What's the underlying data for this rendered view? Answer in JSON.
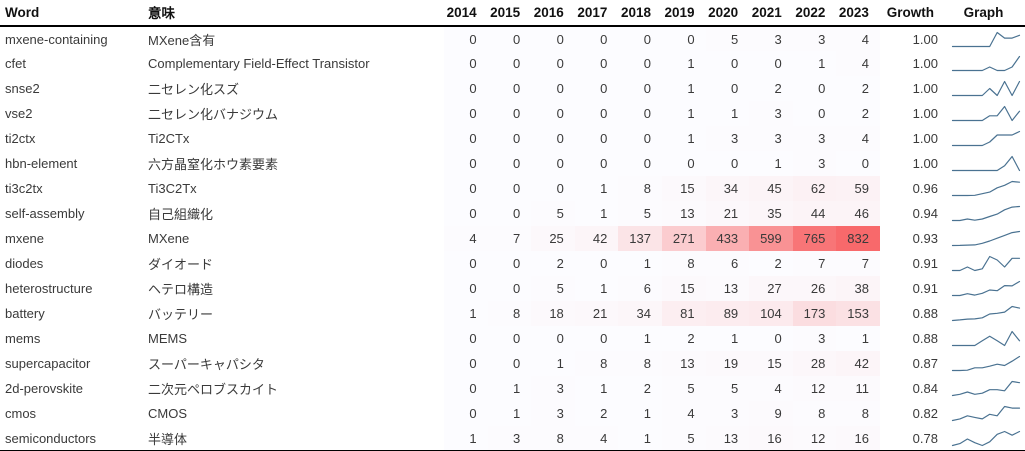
{
  "table": {
    "headers": {
      "word": "Word",
      "meaning": "意味",
      "years": [
        "2014",
        "2015",
        "2016",
        "2017",
        "2018",
        "2019",
        "2020",
        "2021",
        "2022",
        "2023"
      ],
      "growth": "Growth",
      "graph": "Graph"
    }
  },
  "chart_data": {
    "type": "heatmap",
    "title": "",
    "x_labels": [
      "2014",
      "2015",
      "2016",
      "2017",
      "2018",
      "2019",
      "2020",
      "2021",
      "2022",
      "2023"
    ],
    "color_scale": {
      "min_color": "#fcfcff",
      "max_color": "#f8696b",
      "domain": [
        0,
        832
      ]
    },
    "sparkline_color": "#4a7291",
    "rows": [
      {
        "word": "mxene-containing",
        "meaning": "MXene含有",
        "values": [
          0,
          0,
          0,
          0,
          0,
          0,
          5,
          3,
          3,
          4
        ],
        "growth": "1.00"
      },
      {
        "word": "cfet",
        "meaning": "Complementary Field-Effect Transistor",
        "values": [
          0,
          0,
          0,
          0,
          0,
          1,
          0,
          0,
          1,
          4
        ],
        "growth": "1.00"
      },
      {
        "word": "snse2",
        "meaning": "二セレン化スズ",
        "values": [
          0,
          0,
          0,
          0,
          0,
          1,
          0,
          2,
          0,
          2
        ],
        "growth": "1.00"
      },
      {
        "word": "vse2",
        "meaning": "二セレン化バナジウム",
        "values": [
          0,
          0,
          0,
          0,
          0,
          1,
          1,
          3,
          0,
          2
        ],
        "growth": "1.00"
      },
      {
        "word": "ti2ctx",
        "meaning": "Ti2CTx",
        "values": [
          0,
          0,
          0,
          0,
          0,
          1,
          3,
          3,
          3,
          4
        ],
        "growth": "1.00"
      },
      {
        "word": "hbn-element",
        "meaning": "六方晶窒化ホウ素要素",
        "values": [
          0,
          0,
          0,
          0,
          0,
          0,
          0,
          1,
          3,
          0
        ],
        "growth": "1.00"
      },
      {
        "word": "ti3c2tx",
        "meaning": "Ti3C2Tx",
        "values": [
          0,
          0,
          0,
          1,
          8,
          15,
          34,
          45,
          62,
          59
        ],
        "growth": "0.96"
      },
      {
        "word": "self-assembly",
        "meaning": "自己組織化",
        "values": [
          0,
          0,
          5,
          1,
          5,
          13,
          21,
          35,
          44,
          46
        ],
        "growth": "0.94"
      },
      {
        "word": "mxene",
        "meaning": "MXene",
        "values": [
          4,
          7,
          25,
          42,
          137,
          271,
          433,
          599,
          765,
          832
        ],
        "growth": "0.93"
      },
      {
        "word": "diodes",
        "meaning": "ダイオード",
        "values": [
          0,
          0,
          2,
          0,
          1,
          8,
          6,
          2,
          7,
          7
        ],
        "growth": "0.91"
      },
      {
        "word": "heterostructure",
        "meaning": "ヘテロ構造",
        "values": [
          0,
          0,
          5,
          1,
          6,
          15,
          13,
          27,
          26,
          38
        ],
        "growth": "0.91"
      },
      {
        "word": "battery",
        "meaning": "バッテリー",
        "values": [
          1,
          8,
          18,
          21,
          34,
          81,
          89,
          104,
          173,
          153
        ],
        "growth": "0.88"
      },
      {
        "word": "mems",
        "meaning": "MEMS",
        "values": [
          0,
          0,
          0,
          0,
          1,
          2,
          1,
          0,
          3,
          1
        ],
        "growth": "0.88"
      },
      {
        "word": "supercapacitor",
        "meaning": "スーパーキャパシタ",
        "values": [
          0,
          0,
          1,
          8,
          8,
          13,
          19,
          15,
          28,
          42
        ],
        "growth": "0.87"
      },
      {
        "word": "2d-perovskite",
        "meaning": "二次元ペロブスカイト",
        "values": [
          0,
          1,
          3,
          1,
          2,
          5,
          5,
          4,
          12,
          11
        ],
        "growth": "0.84"
      },
      {
        "word": "cmos",
        "meaning": "CMOS",
        "values": [
          0,
          1,
          3,
          2,
          1,
          4,
          3,
          9,
          8,
          8
        ],
        "growth": "0.82"
      },
      {
        "word": "semiconductors",
        "meaning": "半導体",
        "values": [
          1,
          3,
          8,
          4,
          1,
          5,
          13,
          16,
          12,
          16
        ],
        "growth": "0.78"
      }
    ]
  }
}
